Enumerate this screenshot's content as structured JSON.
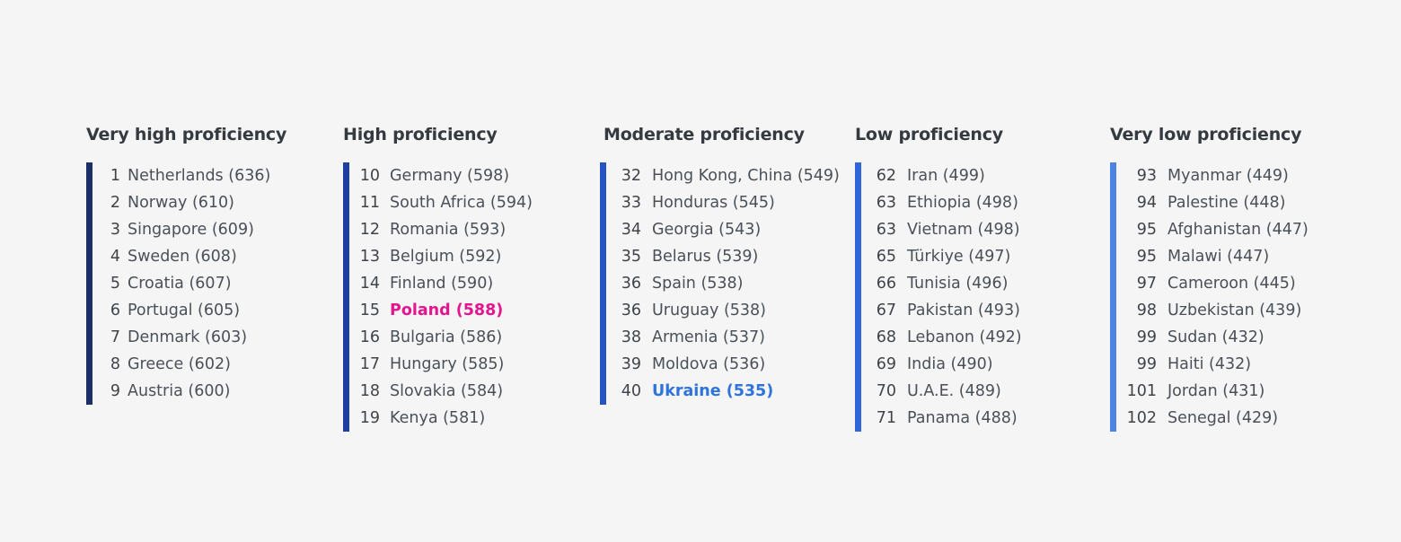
{
  "colors": {
    "background": "#f5f5f6",
    "poland_highlight": "#e3158f",
    "ukraine_highlight": "#2f74dc",
    "bars": [
      "#1b2e66",
      "#1f3fa0",
      "#2553c4",
      "#2f67db",
      "#4d84e4"
    ]
  },
  "groups": [
    {
      "title": "Very high proficiency",
      "items": [
        {
          "rank": "1",
          "name": "Netherlands (636)"
        },
        {
          "rank": "2",
          "name": "Norway (610)"
        },
        {
          "rank": "3",
          "name": "Singapore (609)"
        },
        {
          "rank": "4",
          "name": "Sweden (608)"
        },
        {
          "rank": "5",
          "name": "Croatia (607)"
        },
        {
          "rank": "6",
          "name": "Portugal (605)"
        },
        {
          "rank": "7",
          "name": "Denmark (603)"
        },
        {
          "rank": "8",
          "name": "Greece (602)"
        },
        {
          "rank": "9",
          "name": "Austria (600)"
        }
      ]
    },
    {
      "title": "High proficiency",
      "items": [
        {
          "rank": "10",
          "name": "Germany (598)"
        },
        {
          "rank": "11",
          "name": "South Africa (594)"
        },
        {
          "rank": "12",
          "name": "Romania (593)"
        },
        {
          "rank": "13",
          "name": "Belgium (592)"
        },
        {
          "rank": "14",
          "name": "Finland (590)"
        },
        {
          "rank": "15",
          "name": "Poland (588)",
          "highlight": "pink"
        },
        {
          "rank": "16",
          "name": "Bulgaria (586)"
        },
        {
          "rank": "17",
          "name": "Hungary (585)"
        },
        {
          "rank": "18",
          "name": "Slovakia (584)"
        },
        {
          "rank": "19",
          "name": "Kenya (581)"
        }
      ]
    },
    {
      "title": "Moderate proficiency",
      "items": [
        {
          "rank": "32",
          "name": "Hong Kong, China (549)"
        },
        {
          "rank": "33",
          "name": "Honduras (545)"
        },
        {
          "rank": "34",
          "name": "Georgia (543)"
        },
        {
          "rank": "35",
          "name": "Belarus (539)"
        },
        {
          "rank": "36",
          "name": "Spain (538)"
        },
        {
          "rank": "36",
          "name": "Uruguay (538)"
        },
        {
          "rank": "38",
          "name": "Armenia (537)"
        },
        {
          "rank": "39",
          "name": "Moldova (536)"
        },
        {
          "rank": "40",
          "name": "Ukraine (535)",
          "highlight": "blue"
        }
      ]
    },
    {
      "title": "Low proficiency",
      "items": [
        {
          "rank": "62",
          "name": "Iran (499)"
        },
        {
          "rank": "63",
          "name": "Ethiopia (498)"
        },
        {
          "rank": "63",
          "name": "Vietnam (498)"
        },
        {
          "rank": "65",
          "name": "Türkiye (497)"
        },
        {
          "rank": "66",
          "name": "Tunisia (496)"
        },
        {
          "rank": "67",
          "name": "Pakistan (493)"
        },
        {
          "rank": "68",
          "name": "Lebanon (492)"
        },
        {
          "rank": "69",
          "name": "India (490)"
        },
        {
          "rank": "70",
          "name": "U.A.E. (489)"
        },
        {
          "rank": "71",
          "name": "Panama (488)"
        }
      ]
    },
    {
      "title": "Very low proficiency",
      "items": [
        {
          "rank": "93",
          "name": "Myanmar (449)"
        },
        {
          "rank": "94",
          "name": "Palestine (448)"
        },
        {
          "rank": "95",
          "name": "Afghanistan (447)"
        },
        {
          "rank": "95",
          "name": "Malawi (447)"
        },
        {
          "rank": "97",
          "name": "Cameroon (445)"
        },
        {
          "rank": "98",
          "name": "Uzbekistan (439)"
        },
        {
          "rank": "99",
          "name": "Sudan (432)"
        },
        {
          "rank": "99",
          "name": "Haiti (432)"
        },
        {
          "rank": "101",
          "name": "Jordan (431)"
        },
        {
          "rank": "102",
          "name": "Senegal (429)"
        }
      ]
    }
  ]
}
